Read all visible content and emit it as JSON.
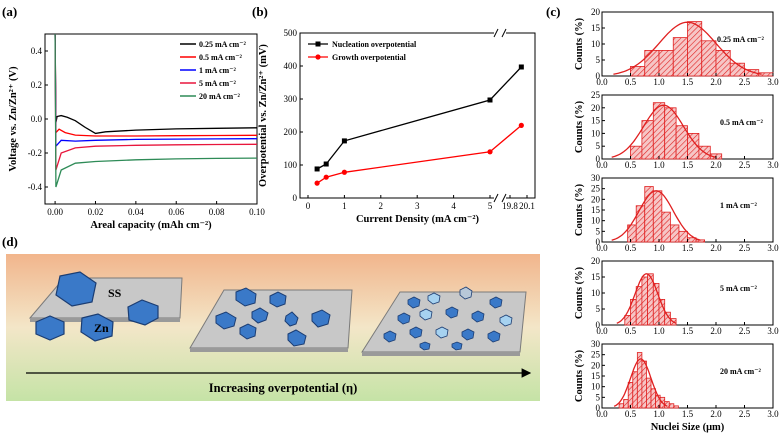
{
  "panel_labels": {
    "a": "(a)",
    "b": "(b)",
    "c": "(c)",
    "d": "(d)"
  },
  "chart_data": [
    {
      "id": "a",
      "type": "line",
      "xlabel": "Areal capacity (mAh cm⁻²)",
      "ylabel": "Voltage vs. Zn/Zn²⁺ (V)",
      "xlim": [
        -0.005,
        0.1
      ],
      "ylim": [
        -0.5,
        0.5
      ],
      "xticks": [
        "0.00",
        "0.02",
        "0.04",
        "0.06",
        "0.08",
        "0.10"
      ],
      "xtick_values": [
        0,
        0.02,
        0.04,
        0.06,
        0.08,
        0.1
      ],
      "yticks": [
        "-0.4",
        "-0.2",
        "0.0",
        "0.2",
        "0.4"
      ],
      "ytick_values": [
        -0.4,
        -0.2,
        0.0,
        0.2,
        0.4
      ],
      "legend_position": "top-right",
      "series": [
        {
          "name": "0.25 mA cm⁻²",
          "color": "#000000",
          "points": [
            [
              0,
              0.5
            ],
            [
              0.0004,
              -0.02
            ],
            [
              0.001,
              0.015
            ],
            [
              0.003,
              0.02
            ],
            [
              0.006,
              0.01
            ],
            [
              0.01,
              -0.01
            ],
            [
              0.015,
              -0.05
            ],
            [
              0.02,
              -0.085
            ],
            [
              0.025,
              -0.075
            ],
            [
              0.04,
              -0.065
            ],
            [
              0.06,
              -0.058
            ],
            [
              0.08,
              -0.055
            ],
            [
              0.1,
              -0.052
            ]
          ]
        },
        {
          "name": "0.5 mA cm⁻²",
          "color": "#ff0000",
          "points": [
            [
              0,
              0.5
            ],
            [
              0.0004,
              -0.08
            ],
            [
              0.002,
              -0.06
            ],
            [
              0.005,
              -0.08
            ],
            [
              0.01,
              -0.095
            ],
            [
              0.02,
              -0.1
            ],
            [
              0.04,
              -0.1
            ],
            [
              0.06,
              -0.098
            ],
            [
              0.08,
              -0.097
            ],
            [
              0.1,
              -0.096
            ]
          ]
        },
        {
          "name": "1 mA cm⁻²",
          "color": "#0000ff",
          "points": [
            [
              0,
              0.5
            ],
            [
              0.0004,
              -0.16
            ],
            [
              0.003,
              -0.125
            ],
            [
              0.01,
              -0.13
            ],
            [
              0.02,
              -0.125
            ],
            [
              0.04,
              -0.12
            ],
            [
              0.06,
              -0.118
            ],
            [
              0.08,
              -0.117
            ],
            [
              0.1,
              -0.116
            ]
          ]
        },
        {
          "name": "5 mA cm⁻²",
          "color": "#e8163c",
          "points": [
            [
              0,
              0.5
            ],
            [
              0.0004,
              -0.3
            ],
            [
              0.003,
              -0.2
            ],
            [
              0.01,
              -0.17
            ],
            [
              0.02,
              -0.16
            ],
            [
              0.04,
              -0.155
            ],
            [
              0.06,
              -0.152
            ],
            [
              0.08,
              -0.15
            ],
            [
              0.1,
              -0.149
            ]
          ]
        },
        {
          "name": "20 mA cm⁻²",
          "color": "#2e8b57",
          "points": [
            [
              0,
              0.5
            ],
            [
              0.0004,
              -0.4
            ],
            [
              0.003,
              -0.3
            ],
            [
              0.01,
              -0.26
            ],
            [
              0.02,
              -0.25
            ],
            [
              0.04,
              -0.24
            ],
            [
              0.06,
              -0.235
            ],
            [
              0.08,
              -0.232
            ],
            [
              0.1,
              -0.23
            ]
          ]
        }
      ]
    },
    {
      "id": "b",
      "type": "line",
      "xlabel": "Current Density (mA cm⁻²)",
      "ylabel": "Overpotential vs. Zn/Zn²⁺ (mV)",
      "ylim": [
        0,
        500
      ],
      "yticks": [
        "0",
        "100",
        "200",
        "300",
        "400",
        "500"
      ],
      "ytick_values": [
        0,
        100,
        200,
        300,
        400,
        500
      ],
      "x_break": "between 5 and 19.8",
      "xticks": [
        "0",
        "1",
        "2",
        "3",
        "4",
        "5",
        "19.8",
        "20.1"
      ],
      "xtick_values": [
        0,
        1,
        2,
        3,
        4,
        5,
        19.8,
        20.1
      ],
      "legend_position": "top-left",
      "x": [
        0.25,
        0.5,
        1,
        5,
        20
      ],
      "series": [
        {
          "name": "Nucleation overpotential",
          "color": "#000000",
          "marker": "square",
          "values": [
            88,
            103,
            173,
            297,
            397
          ]
        },
        {
          "name": "Growth overpotential",
          "color": "#ff0000",
          "marker": "circle",
          "values": [
            45,
            63,
            78,
            140,
            220
          ]
        }
      ]
    },
    {
      "id": "c",
      "type": "bar",
      "xlabel": "Nuclei Size (μm)",
      "ylabel": "Counts (%)",
      "xticks": [
        "0.0",
        "0.5",
        "1.0",
        "1.5",
        "2.0",
        "2.5",
        "3.0"
      ],
      "xtick_values": [
        0,
        0.5,
        1.0,
        1.5,
        2.0,
        2.5,
        3.0
      ],
      "histograms": [
        {
          "label": "0.25 mA cm⁻²",
          "ylim": [
            0,
            20
          ],
          "yticks": [
            "0",
            "5",
            "10",
            "15",
            "20"
          ],
          "ytick_values": [
            0,
            5,
            10,
            15,
            20
          ],
          "bin_width": 0.25,
          "bin_starts": [
            0.5,
            0.75,
            1.0,
            1.25,
            1.5,
            1.75,
            2.0,
            2.25,
            2.5,
            2.75
          ],
          "values": [
            3,
            8,
            8,
            12,
            17,
            11,
            8,
            4,
            2,
            1
          ],
          "fit": {
            "mean": 1.5,
            "sigma": 0.5,
            "peak": 16.8
          }
        },
        {
          "label": "0.5 mA cm⁻²",
          "ylim": [
            0,
            25
          ],
          "yticks": [
            "0",
            "5",
            "10",
            "15",
            "20",
            "25"
          ],
          "ytick_values": [
            0,
            5,
            10,
            15,
            20,
            25
          ],
          "bin_width": 0.2,
          "bin_starts": [
            0.5,
            0.7,
            0.9,
            1.1,
            1.3,
            1.5,
            1.7,
            1.9
          ],
          "values": [
            5,
            15,
            22,
            20,
            13,
            10,
            5,
            2
          ],
          "fit": {
            "mean": 1.08,
            "sigma": 0.35,
            "peak": 21
          }
        },
        {
          "label": "1 mA cm⁻²",
          "ylim": [
            0,
            30
          ],
          "yticks": [
            "0",
            "5",
            "10",
            "15",
            "20",
            "25",
            "30"
          ],
          "ytick_values": [
            0,
            5,
            10,
            15,
            20,
            25,
            30
          ],
          "bin_width": 0.15,
          "bin_starts": [
            0.45,
            0.6,
            0.75,
            0.9,
            1.05,
            1.2,
            1.35,
            1.5,
            1.65
          ],
          "values": [
            8,
            17,
            26,
            24,
            14,
            8,
            5,
            2,
            1
          ],
          "fit": {
            "mean": 0.95,
            "sigma": 0.3,
            "peak": 24
          }
        },
        {
          "label": "5 mA cm⁻²",
          "ylim": [
            0,
            20
          ],
          "yticks": [
            "0",
            "5",
            "10",
            "15",
            "20"
          ],
          "ytick_values": [
            0,
            5,
            10,
            15,
            20
          ],
          "bin_width": 0.1,
          "bin_starts": [
            0.4,
            0.5,
            0.6,
            0.7,
            0.8,
            0.9,
            1.0,
            1.1,
            1.2
          ],
          "values": [
            3,
            8,
            12,
            15,
            16,
            13,
            8,
            4,
            2
          ],
          "fit": {
            "mean": 0.78,
            "sigma": 0.2,
            "peak": 16
          }
        },
        {
          "label": "20 mA cm⁻²",
          "ylim": [
            0,
            30
          ],
          "yticks": [
            "0",
            "5",
            "10",
            "15",
            "20",
            "25",
            "30"
          ],
          "ytick_values": [
            0,
            5,
            10,
            15,
            20,
            25,
            30
          ],
          "bin_width": 0.08,
          "bin_starts": [
            0.3,
            0.38,
            0.46,
            0.54,
            0.62,
            0.7,
            0.78,
            0.86,
            0.94,
            1.02,
            1.1,
            1.18,
            1.26
          ],
          "values": [
            2,
            4,
            12,
            17,
            26,
            22,
            14,
            9,
            6,
            5,
            3,
            2,
            1
          ],
          "fit": {
            "mean": 0.68,
            "sigma": 0.18,
            "peak": 23
          }
        }
      ]
    }
  ],
  "schematic": {
    "substrate_label": "SS",
    "nucleus_label": "Zn",
    "arrow_label": "Increasing overpotential (η)"
  }
}
